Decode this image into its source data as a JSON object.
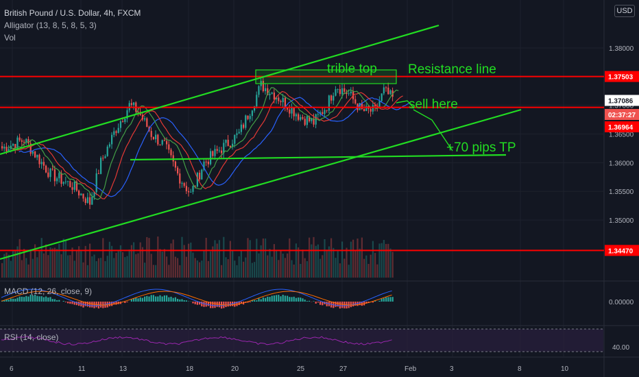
{
  "header": {
    "symbol_line": "British Pound / U.S. Dollar, 4h, FXCM",
    "indicator_line": "Alligator (13, 8, 5, 8, 5, 3)",
    "volume_label": "Vol",
    "macd_label": "MACD (12, 26, close, 9)",
    "rsi_label": "RSI (14, close)",
    "currency_button": "USD"
  },
  "colors": {
    "background": "#131722",
    "bull": "#26a69a",
    "bear": "#ef5350",
    "red_lines": "#ff0000",
    "annotation_green": "#22dd22",
    "alligator_jaw": "#2962ff",
    "alligator_teeth": "#e53935",
    "alligator_lips": "#43a047",
    "rsi_line": "#9c27b0"
  },
  "chart_data": {
    "type": "candlestick",
    "symbol": "GBPUSD",
    "timeframe": "4h",
    "price_axis": {
      "range": [
        1.3435,
        1.3865
      ],
      "ticks": [
        "1.38000",
        "1.37500",
        "1.37000",
        "1.36500",
        "1.36000",
        "1.35500",
        "1.35000"
      ],
      "tags": [
        {
          "value": "1.37503",
          "color": "#ff0000"
        },
        {
          "value": "1.37086",
          "color": "#ffffff",
          "text_color": "#131722"
        },
        {
          "value": "02:37:27",
          "color": "#ef5350"
        },
        {
          "value": "1.36964",
          "color": "#ff0000"
        },
        {
          "value": "1.34470",
          "color": "#ff0000"
        }
      ]
    },
    "time_axis": [
      "6",
      "11",
      "13",
      "18",
      "20",
      "25",
      "27",
      "Feb",
      "3",
      "8",
      "10"
    ],
    "horizontal_levels": [
      1.37503,
      1.36964,
      1.3447
    ],
    "macd_axis_tick": "0.00000",
    "rsi_axis_tick": "40.00",
    "annotations": [
      {
        "text": "trible top"
      },
      {
        "text": "Resistance line"
      },
      {
        "text": "sell here"
      },
      {
        "text": "+70 pips TP"
      }
    ]
  }
}
